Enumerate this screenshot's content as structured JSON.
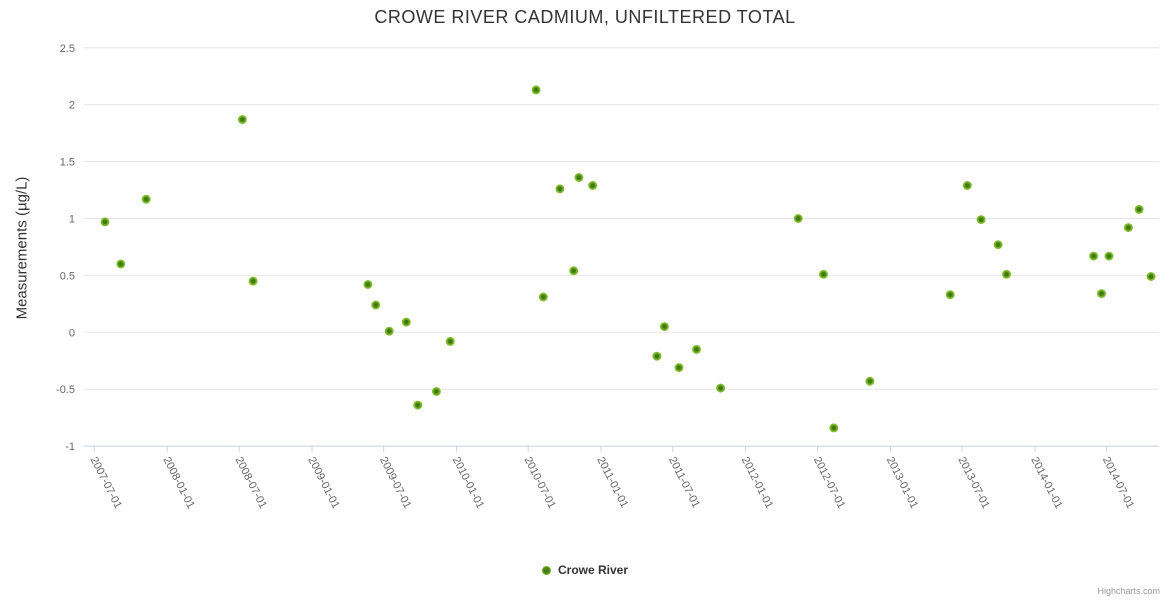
{
  "chart": {
    "title": "CROWE RIVER CADMIUM, UNFILTERED TOTAL",
    "y_axis_title": "Measurements (µg/L)",
    "legend": {
      "label": "Crowe River"
    },
    "credits": "Highcharts.com",
    "colors": {
      "marker_edge": "#8dc63f",
      "marker_mid": "#7ab629",
      "marker_core": "#3f7a0d",
      "grid": "#e6e6e6",
      "axis": "#ccd6eb",
      "axis_label": "#666666",
      "title_text": "#333333",
      "credits_text": "#999999"
    }
  },
  "chart_data": {
    "type": "scatter",
    "title": "CROWE RIVER CADMIUM, UNFILTERED TOTAL",
    "xlabel": "",
    "ylabel": "Measurements (µg/L)",
    "ylim": [
      -1,
      2.5
    ],
    "grid": "horizontal",
    "legend_position": "bottom-center",
    "y_ticks": [
      2.5,
      2,
      1.5,
      1,
      0.5,
      0,
      -0.5,
      -1
    ],
    "x_ticks": [
      "2007-07-01",
      "2008-01-01",
      "2008-07-01",
      "2009-01-01",
      "2009-07-01",
      "2010-01-01",
      "2010-07-01",
      "2011-01-01",
      "2011-07-01",
      "2012-01-01",
      "2012-07-01",
      "2013-01-01",
      "2013-07-01",
      "2014-01-01",
      "2014-07-01"
    ],
    "series": [
      {
        "name": "Crowe River",
        "points": [
          {
            "date": "2007-07-28",
            "value": 0.97
          },
          {
            "date": "2007-09-06",
            "value": 0.6
          },
          {
            "date": "2007-11-09",
            "value": 1.17
          },
          {
            "date": "2008-07-09",
            "value": 1.87
          },
          {
            "date": "2008-08-05",
            "value": 0.45
          },
          {
            "date": "2009-05-22",
            "value": 0.42
          },
          {
            "date": "2009-06-11",
            "value": 0.24
          },
          {
            "date": "2009-07-15",
            "value": 0.01
          },
          {
            "date": "2009-08-27",
            "value": 0.09
          },
          {
            "date": "2009-09-25",
            "value": -0.64
          },
          {
            "date": "2009-11-11",
            "value": -0.52
          },
          {
            "date": "2009-12-16",
            "value": -0.08
          },
          {
            "date": "2010-07-21",
            "value": 2.13
          },
          {
            "date": "2010-08-08",
            "value": 0.31
          },
          {
            "date": "2010-09-19",
            "value": 1.26
          },
          {
            "date": "2010-10-24",
            "value": 0.54
          },
          {
            "date": "2010-11-06",
            "value": 1.36
          },
          {
            "date": "2010-12-11",
            "value": 1.29
          },
          {
            "date": "2011-05-22",
            "value": -0.21
          },
          {
            "date": "2011-06-10",
            "value": 0.05
          },
          {
            "date": "2011-07-17",
            "value": -0.31
          },
          {
            "date": "2011-08-30",
            "value": -0.15
          },
          {
            "date": "2011-10-30",
            "value": -0.49
          },
          {
            "date": "2012-05-13",
            "value": 1.0
          },
          {
            "date": "2012-07-16",
            "value": 0.51
          },
          {
            "date": "2012-08-11",
            "value": -0.84
          },
          {
            "date": "2012-11-10",
            "value": -0.43
          },
          {
            "date": "2013-06-01",
            "value": 0.33
          },
          {
            "date": "2013-07-14",
            "value": 1.29
          },
          {
            "date": "2013-08-18",
            "value": 0.99
          },
          {
            "date": "2013-09-30",
            "value": 0.77
          },
          {
            "date": "2013-10-21",
            "value": 0.51
          },
          {
            "date": "2014-05-29",
            "value": 0.67
          },
          {
            "date": "2014-06-18",
            "value": 0.34
          },
          {
            "date": "2014-07-07",
            "value": 0.67
          },
          {
            "date": "2014-08-25",
            "value": 0.92
          },
          {
            "date": "2014-09-21",
            "value": 1.08
          },
          {
            "date": "2014-10-21",
            "value": 0.49
          }
        ]
      }
    ]
  }
}
